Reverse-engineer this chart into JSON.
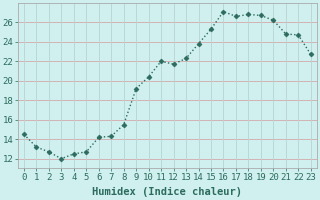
{
  "x": [
    0,
    1,
    2,
    3,
    4,
    5,
    6,
    7,
    8,
    9,
    10,
    11,
    12,
    13,
    14,
    15,
    16,
    17,
    18,
    19,
    20,
    21,
    22,
    23
  ],
  "y": [
    14.5,
    13.2,
    12.7,
    12.0,
    12.5,
    12.7,
    14.2,
    14.3,
    15.5,
    19.2,
    20.4,
    22.0,
    21.7,
    22.3,
    23.8,
    25.3,
    27.1,
    26.6,
    26.8,
    26.7,
    26.2,
    24.8,
    24.7,
    22.7
  ],
  "line_color": "#2d6b5e",
  "marker": "D",
  "marker_size": 2.5,
  "background_color": "#cff0ee",
  "grid_color_h": "#d4a8a8",
  "grid_color_v": "#b8d4d4",
  "xlabel": "Humidex (Indice chaleur)",
  "xlabel_fontsize": 7.5,
  "ylabel_ticks": [
    12,
    14,
    16,
    18,
    20,
    22,
    24,
    26
  ],
  "ylim": [
    11.0,
    28.0
  ],
  "xlim": [
    -0.5,
    23.5
  ],
  "xtick_labels": [
    "0",
    "1",
    "2",
    "3",
    "4",
    "5",
    "6",
    "7",
    "8",
    "9",
    "10",
    "11",
    "12",
    "13",
    "14",
    "15",
    "16",
    "17",
    "18",
    "19",
    "20",
    "21",
    "22",
    "23"
  ],
  "tick_fontsize": 6.5,
  "line_width": 1.0
}
